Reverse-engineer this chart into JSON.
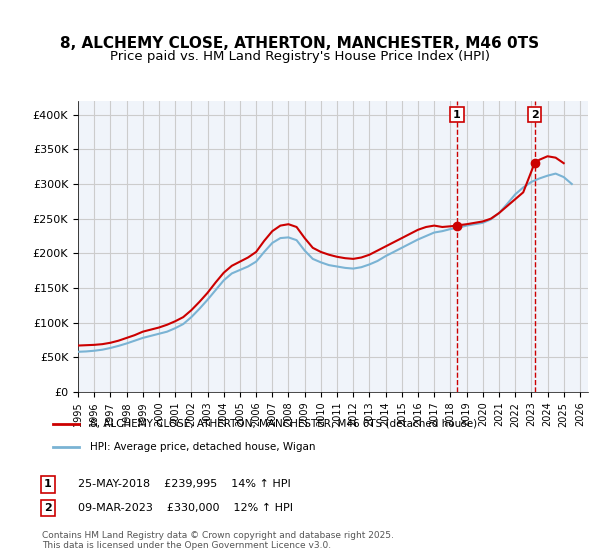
{
  "title": "8, ALCHEMY CLOSE, ATHERTON, MANCHESTER, M46 0TS",
  "subtitle": "Price paid vs. HM Land Registry's House Price Index (HPI)",
  "title_fontsize": 11,
  "subtitle_fontsize": 9.5,
  "ylabel_ticks": [
    "£0",
    "£50K",
    "£100K",
    "£150K",
    "£200K",
    "£250K",
    "£300K",
    "£350K",
    "£400K"
  ],
  "ytick_vals": [
    0,
    50000,
    100000,
    150000,
    200000,
    250000,
    300000,
    350000,
    400000
  ],
  "ylim": [
    0,
    420000
  ],
  "xlim_start": 1995.0,
  "xlim_end": 2026.5,
  "xtick_years": [
    1995,
    1996,
    1997,
    1998,
    1999,
    2000,
    2001,
    2002,
    2003,
    2004,
    2005,
    2006,
    2007,
    2008,
    2009,
    2010,
    2011,
    2012,
    2013,
    2014,
    2015,
    2016,
    2017,
    2018,
    2019,
    2020,
    2021,
    2022,
    2023,
    2024,
    2025,
    2026
  ],
  "red_line_color": "#cc0000",
  "blue_line_color": "#7ab3d4",
  "grid_color": "#cccccc",
  "bg_color": "#f0f4fa",
  "plot_bg": "#f0f4fa",
  "marker1_x": 2018.4,
  "marker1_y": 239995,
  "marker2_x": 2023.2,
  "marker2_y": 330000,
  "marker1_label": "1",
  "marker2_label": "2",
  "annotation1": "25-MAY-2018    £239,995    14% ↑ HPI",
  "annotation2": "09-MAR-2023    £330,000    12% ↑ HPI",
  "legend1": "8, ALCHEMY CLOSE, ATHERTON, MANCHESTER, M46 0TS (detached house)",
  "legend2": "HPI: Average price, detached house, Wigan",
  "footer": "Contains HM Land Registry data © Crown copyright and database right 2025.\nThis data is licensed under the Open Government Licence v3.0.",
  "red_data_x": [
    1995.0,
    1995.5,
    1996.0,
    1996.5,
    1997.0,
    1997.5,
    1998.0,
    1998.5,
    1999.0,
    1999.5,
    2000.0,
    2000.5,
    2001.0,
    2001.5,
    2002.0,
    2002.5,
    2003.0,
    2003.5,
    2004.0,
    2004.5,
    2005.0,
    2005.5,
    2006.0,
    2006.5,
    2007.0,
    2007.5,
    2008.0,
    2008.5,
    2009.0,
    2009.5,
    2010.0,
    2010.5,
    2011.0,
    2011.5,
    2012.0,
    2012.5,
    2013.0,
    2013.5,
    2014.0,
    2014.5,
    2015.0,
    2015.5,
    2016.0,
    2016.5,
    2017.0,
    2017.5,
    2018.0,
    2018.4,
    2018.5,
    2019.0,
    2019.5,
    2020.0,
    2020.5,
    2021.0,
    2021.5,
    2022.0,
    2022.5,
    2023.2,
    2023.5,
    2024.0,
    2024.5,
    2025.0
  ],
  "red_data_y": [
    67000,
    67500,
    68000,
    69000,
    71000,
    74000,
    78000,
    82000,
    87000,
    90000,
    93000,
    97000,
    102000,
    108000,
    118000,
    130000,
    143000,
    158000,
    172000,
    182000,
    188000,
    194000,
    202000,
    218000,
    232000,
    240000,
    242000,
    238000,
    222000,
    208000,
    202000,
    198000,
    195000,
    193000,
    192000,
    194000,
    198000,
    204000,
    210000,
    216000,
    222000,
    228000,
    234000,
    238000,
    240000,
    238000,
    239000,
    239995,
    240500,
    242000,
    244000,
    246000,
    250000,
    258000,
    268000,
    278000,
    288000,
    330000,
    335000,
    340000,
    338000,
    330000
  ],
  "blue_data_x": [
    1995.0,
    1995.5,
    1996.0,
    1996.5,
    1997.0,
    1997.5,
    1998.0,
    1998.5,
    1999.0,
    1999.5,
    2000.0,
    2000.5,
    2001.0,
    2001.5,
    2002.0,
    2002.5,
    2003.0,
    2003.5,
    2004.0,
    2004.5,
    2005.0,
    2005.5,
    2006.0,
    2006.5,
    2007.0,
    2007.5,
    2008.0,
    2008.5,
    2009.0,
    2009.5,
    2010.0,
    2010.5,
    2011.0,
    2011.5,
    2012.0,
    2012.5,
    2013.0,
    2013.5,
    2014.0,
    2014.5,
    2015.0,
    2015.5,
    2016.0,
    2016.5,
    2017.0,
    2017.5,
    2018.0,
    2018.5,
    2019.0,
    2019.5,
    2020.0,
    2020.5,
    2021.0,
    2021.5,
    2022.0,
    2022.5,
    2023.0,
    2023.5,
    2024.0,
    2024.5,
    2025.0,
    2025.5
  ],
  "blue_data_y": [
    58000,
    58500,
    59500,
    61000,
    63500,
    66500,
    70000,
    74000,
    78000,
    81000,
    84000,
    87000,
    92000,
    98000,
    108000,
    120000,
    133000,
    147000,
    161000,
    171000,
    176000,
    181000,
    188000,
    202000,
    215000,
    222000,
    223000,
    219000,
    204000,
    192000,
    187000,
    183000,
    181000,
    179000,
    178000,
    180000,
    184000,
    189000,
    196000,
    202000,
    208000,
    214000,
    220000,
    225000,
    230000,
    232000,
    235000,
    237000,
    240000,
    242000,
    244000,
    249000,
    258000,
    271000,
    285000,
    295000,
    303000,
    308000,
    312000,
    315000,
    310000,
    300000
  ]
}
